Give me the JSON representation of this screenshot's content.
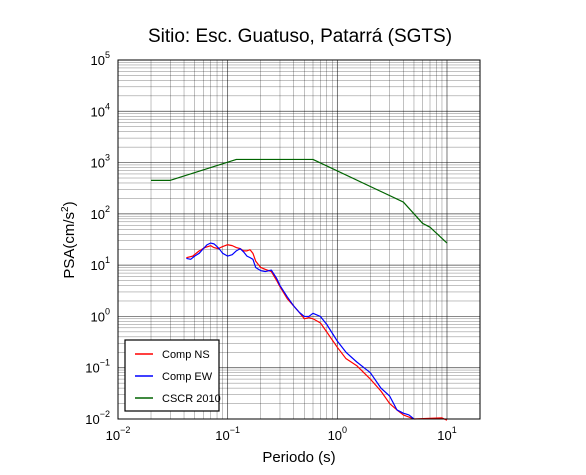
{
  "chart_data": {
    "type": "line",
    "title": "Sitio: Esc. Guatuso, Patarrá (SGTS)",
    "xlabel": "Periodo (s)",
    "ylabel_parts": [
      "PSA(cm/s",
      "2",
      ")"
    ],
    "xscale": "log",
    "yscale": "log",
    "xlim": [
      0.01,
      20
    ],
    "ylim": [
      0.01,
      100000
    ],
    "grid": true,
    "legend_position": "bottom-left",
    "x_ticks": [
      {
        "base": "10",
        "exp": "−2",
        "value": 0.01
      },
      {
        "base": "10",
        "exp": "−1",
        "value": 0.1
      },
      {
        "base": "10",
        "exp": "0",
        "value": 1
      },
      {
        "base": "10",
        "exp": "1",
        "value": 10
      }
    ],
    "y_ticks": [
      {
        "base": "10",
        "exp": "−2",
        "value": 0.01
      },
      {
        "base": "10",
        "exp": "−1",
        "value": 0.1
      },
      {
        "base": "10",
        "exp": "0",
        "value": 1
      },
      {
        "base": "10",
        "exp": "1",
        "value": 10
      },
      {
        "base": "10",
        "exp": "2",
        "value": 100
      },
      {
        "base": "10",
        "exp": "3",
        "value": 1000
      },
      {
        "base": "10",
        "exp": "4",
        "value": 10000
      },
      {
        "base": "10",
        "exp": "5",
        "value": 100000
      }
    ],
    "series": [
      {
        "name": "Comp NS",
        "color": "#ff0000",
        "points": [
          [
            0.042,
            14
          ],
          [
            0.048,
            15
          ],
          [
            0.055,
            19
          ],
          [
            0.062,
            22
          ],
          [
            0.07,
            24
          ],
          [
            0.075,
            22
          ],
          [
            0.082,
            21
          ],
          [
            0.09,
            23
          ],
          [
            0.1,
            25
          ],
          [
            0.11,
            24
          ],
          [
            0.12,
            22
          ],
          [
            0.13,
            21
          ],
          [
            0.14,
            19
          ],
          [
            0.15,
            19
          ],
          [
            0.16,
            20
          ],
          [
            0.17,
            17
          ],
          [
            0.18,
            12
          ],
          [
            0.2,
            9
          ],
          [
            0.22,
            8.3
          ],
          [
            0.25,
            7.5
          ],
          [
            0.28,
            5
          ],
          [
            0.3,
            3.8
          ],
          [
            0.35,
            2.2
          ],
          [
            0.4,
            1.6
          ],
          [
            0.45,
            1.2
          ],
          [
            0.5,
            0.9
          ],
          [
            0.55,
            0.95
          ],
          [
            0.6,
            0.9
          ],
          [
            0.7,
            0.75
          ],
          [
            0.8,
            0.5
          ],
          [
            1.0,
            0.25
          ],
          [
            1.2,
            0.15
          ],
          [
            1.5,
            0.11
          ],
          [
            2.0,
            0.06
          ],
          [
            2.5,
            0.035
          ],
          [
            3.0,
            0.02
          ],
          [
            3.5,
            0.015
          ],
          [
            4.0,
            0.012
          ],
          [
            5.0,
            0.01
          ],
          [
            9.0,
            0.0105
          ],
          [
            10.0,
            0.0095
          ]
        ]
      },
      {
        "name": "Comp EW",
        "color": "#0000ff",
        "points": [
          [
            0.042,
            13.5
          ],
          [
            0.046,
            13
          ],
          [
            0.05,
            15
          ],
          [
            0.055,
            17
          ],
          [
            0.06,
            21
          ],
          [
            0.065,
            25
          ],
          [
            0.07,
            27
          ],
          [
            0.075,
            26
          ],
          [
            0.08,
            23
          ],
          [
            0.085,
            20
          ],
          [
            0.09,
            17
          ],
          [
            0.1,
            15
          ],
          [
            0.11,
            16
          ],
          [
            0.12,
            19
          ],
          [
            0.13,
            21
          ],
          [
            0.14,
            18
          ],
          [
            0.15,
            15
          ],
          [
            0.16,
            14
          ],
          [
            0.17,
            13
          ],
          [
            0.18,
            9
          ],
          [
            0.2,
            7.8
          ],
          [
            0.22,
            7.5
          ],
          [
            0.25,
            8
          ],
          [
            0.28,
            5.5
          ],
          [
            0.3,
            4
          ],
          [
            0.35,
            2.4
          ],
          [
            0.4,
            1.6
          ],
          [
            0.45,
            1.2
          ],
          [
            0.5,
            1.0
          ],
          [
            0.55,
            1.0
          ],
          [
            0.6,
            1.15
          ],
          [
            0.7,
            1.0
          ],
          [
            0.8,
            0.7
          ],
          [
            1.0,
            0.33
          ],
          [
            1.2,
            0.2
          ],
          [
            1.5,
            0.13
          ],
          [
            2.0,
            0.08
          ],
          [
            2.5,
            0.04
          ],
          [
            3.0,
            0.028
          ],
          [
            3.5,
            0.015
          ],
          [
            4.0,
            0.013
          ],
          [
            4.5,
            0.012
          ],
          [
            5.0,
            0.01
          ]
        ]
      },
      {
        "name": "CSCR 2010",
        "color": "#006400",
        "points": [
          [
            0.02,
            450
          ],
          [
            0.03,
            450
          ],
          [
            0.12,
            1150
          ],
          [
            0.6,
            1150
          ],
          [
            4.0,
            170
          ],
          [
            6.0,
            65
          ],
          [
            7.0,
            55
          ],
          [
            10.0,
            27
          ]
        ]
      }
    ]
  }
}
